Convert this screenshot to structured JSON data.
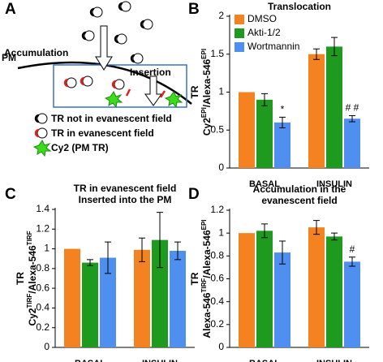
{
  "panel_labels": [
    "A",
    "B",
    "C",
    "D"
  ],
  "diagram": {
    "pm": "PM",
    "accumulation": "Accumulation",
    "insertion": "Insertion",
    "legend": [
      "TR not in evanescent field",
      "TR in evanescent field",
      "Cy2 (PM TR)"
    ]
  },
  "chart_data": [
    {
      "type": "bar",
      "title": [
        "Translocation"
      ],
      "y_label": [
        [
          {
            "text": "TR"
          }
        ],
        [
          {
            "text": "Cy2"
          },
          {
            "text": "EPI",
            "sup": true
          },
          {
            "text": "/Alexa-546"
          },
          {
            "text": "EPI",
            "sup": true
          }
        ]
      ],
      "categories": [
        "BASAL",
        "INSULIN"
      ],
      "legend": "upper-left",
      "series": [
        {
          "name": "DMSO",
          "color": "#f58220",
          "values": [
            1.0,
            1.5
          ],
          "errors": [
            0,
            0.07
          ]
        },
        {
          "name": "Akti-1/2",
          "color": "#1e9a1e",
          "values": [
            0.9,
            1.6
          ],
          "errors": [
            0.08,
            0.12
          ]
        },
        {
          "name": "Wortmannin",
          "color": "#4f8ff0",
          "values": [
            0.6,
            0.65
          ],
          "errors": [
            0.07,
            0.04
          ],
          "annotations": [
            "*",
            "# #"
          ]
        }
      ],
      "ylim": [
        0,
        2
      ],
      "yticks": [
        0,
        0.5,
        1,
        1.5,
        2
      ]
    },
    {
      "type": "bar",
      "title": [
        "TR in evanescent field",
        "Inserted into the PM"
      ],
      "y_label": [
        [
          {
            "text": "TR"
          }
        ],
        [
          {
            "text": "Cy2"
          },
          {
            "text": "TIRF",
            "sup": true
          },
          {
            "text": "/Alexa-546"
          },
          {
            "text": "TIRF",
            "sup": true
          }
        ]
      ],
      "categories": [
        "BASAL",
        "INSULIN"
      ],
      "series": [
        {
          "color": "#f58220",
          "values": [
            1.0,
            0.99
          ],
          "errors": [
            0,
            0.12
          ]
        },
        {
          "color": "#1e9a1e",
          "values": [
            0.86,
            1.09
          ],
          "errors": [
            0.03,
            0.28
          ]
        },
        {
          "color": "#4f8ff0",
          "values": [
            0.91,
            0.98
          ],
          "errors": [
            0.16,
            0.09
          ]
        }
      ],
      "ylim": [
        0,
        1.4
      ],
      "yticks": [
        0,
        0.2,
        0.4,
        0.6,
        0.8,
        1,
        1.2,
        1.4
      ]
    },
    {
      "type": "bar",
      "title": [
        "Accumulation in the",
        "evanescent field"
      ],
      "y_label": [
        [
          {
            "text": "TR"
          }
        ],
        [
          {
            "text": "Alexa-546"
          },
          {
            "text": "TIRF",
            "sup": true
          },
          {
            "text": "/Alexa-546"
          },
          {
            "text": "EPI",
            "sup": true
          }
        ]
      ],
      "categories": [
        "BASAL",
        "INSULIN"
      ],
      "series": [
        {
          "color": "#f58220",
          "values": [
            1.0,
            1.05
          ],
          "errors": [
            0,
            0.06
          ]
        },
        {
          "color": "#1e9a1e",
          "values": [
            1.02,
            0.97
          ],
          "errors": [
            0.06,
            0.03
          ]
        },
        {
          "color": "#4f8ff0",
          "values": [
            0.83,
            0.75
          ],
          "errors": [
            0.1,
            0.04
          ],
          "annotations": [
            null,
            "#"
          ]
        }
      ],
      "ylim": [
        0,
        1.2
      ],
      "yticks": [
        0,
        0.2,
        0.4,
        0.6,
        0.8,
        1,
        1.2
      ]
    }
  ]
}
